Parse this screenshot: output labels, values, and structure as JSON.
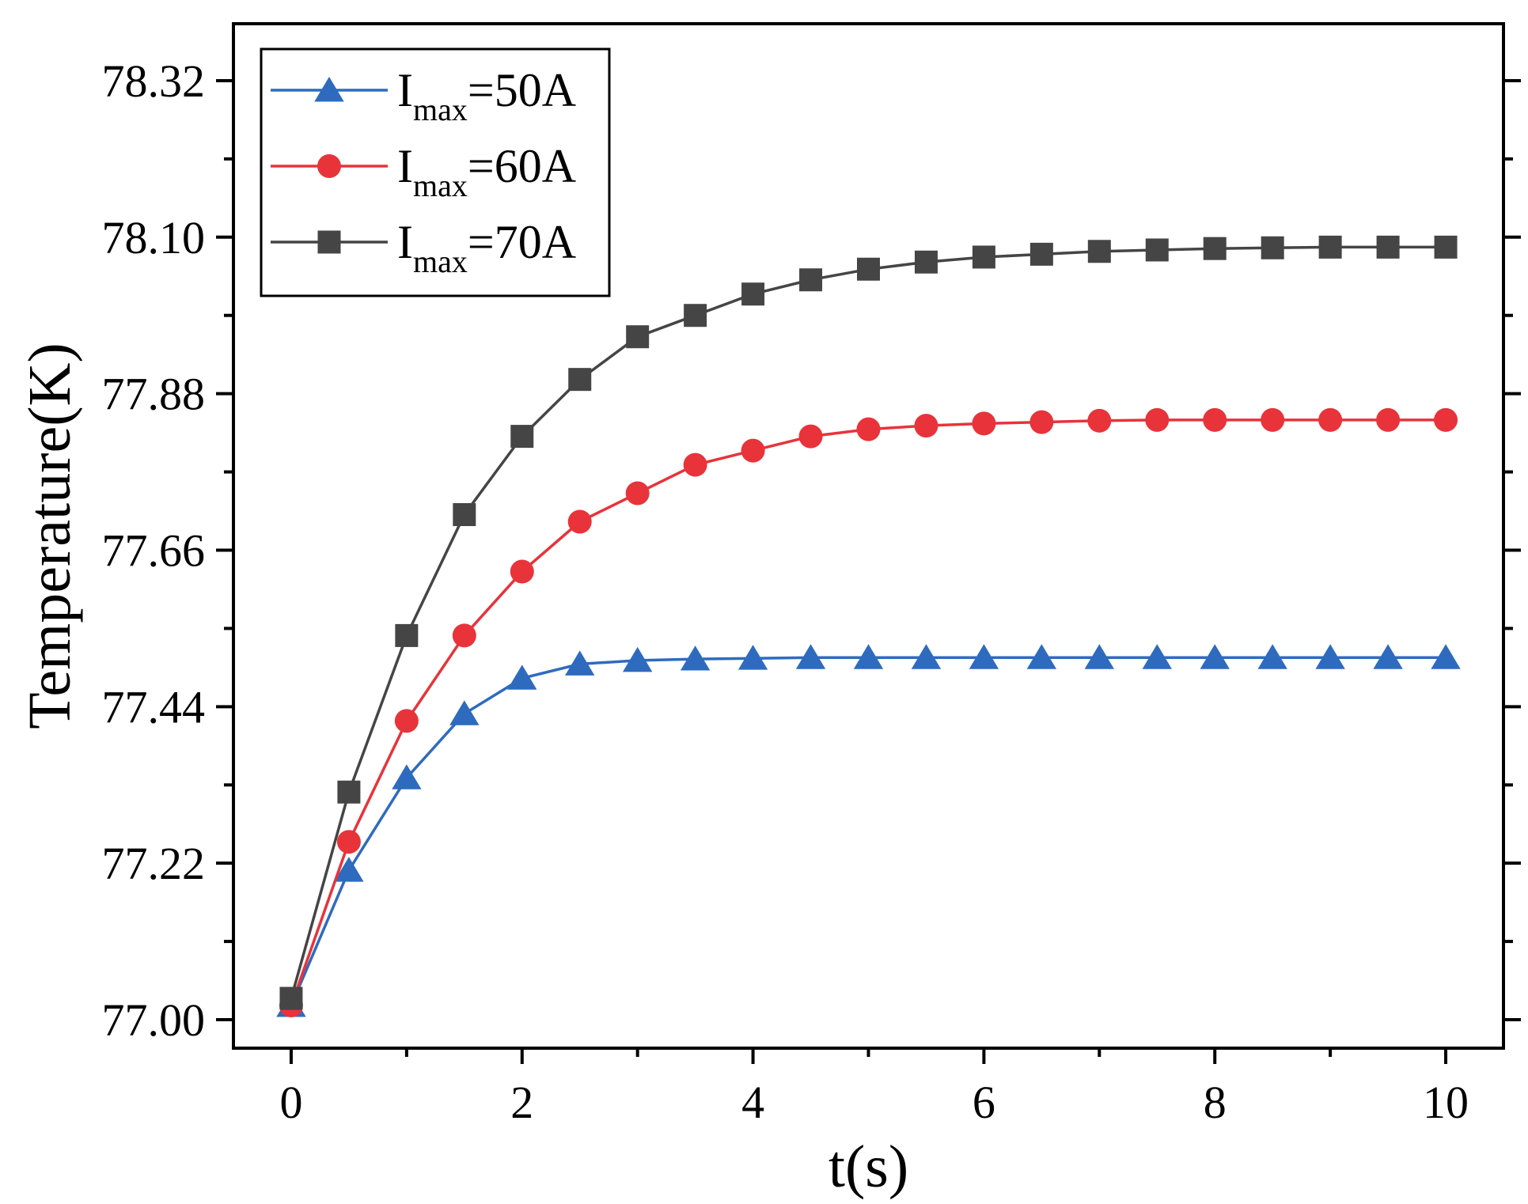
{
  "chart_data": {
    "type": "line",
    "title": "",
    "xlabel": "t(s)",
    "ylabel": "Temperature(K)",
    "xlim": [
      -0.5,
      10.5
    ],
    "ylim": [
      76.96,
      78.4
    ],
    "xticks": [
      0,
      2,
      4,
      6,
      8,
      10
    ],
    "xtick_labels": [
      "0",
      "2",
      "4",
      "6",
      "8",
      "10"
    ],
    "yticks": [
      77.0,
      77.22,
      77.44,
      77.66,
      77.88,
      78.1,
      78.32
    ],
    "ytick_labels": [
      "77.00",
      "77.22",
      "77.44",
      "77.66",
      "77.88",
      "78.10",
      "78.32"
    ],
    "grid": false,
    "legend_position": "top-left",
    "x": [
      0,
      0.5,
      1,
      1.5,
      2,
      2.5,
      3,
      3.5,
      4,
      4.5,
      5,
      5.5,
      6,
      6.5,
      7,
      7.5,
      8,
      8.5,
      9,
      9.5,
      10
    ],
    "series": [
      {
        "name": "I_max=50A",
        "label_main": "I",
        "label_sub": "max",
        "label_rest": "=50A",
        "color": "#2e6bbf",
        "marker": "triangle",
        "values": [
          77.02,
          77.21,
          77.34,
          77.43,
          77.48,
          77.5,
          77.505,
          77.507,
          77.508,
          77.509,
          77.509,
          77.509,
          77.509,
          77.509,
          77.509,
          77.509,
          77.509,
          77.509,
          77.509,
          77.509,
          77.509
        ]
      },
      {
        "name": "I_max=60A",
        "label_main": "I",
        "label_sub": "max",
        "label_rest": "=60A",
        "color": "#e8333a",
        "marker": "circle",
        "values": [
          77.02,
          77.25,
          77.42,
          77.54,
          77.63,
          77.7,
          77.74,
          77.78,
          77.8,
          77.82,
          77.83,
          77.835,
          77.838,
          77.84,
          77.842,
          77.843,
          77.843,
          77.843,
          77.843,
          77.843,
          77.843
        ]
      },
      {
        "name": "I_max=70A",
        "label_main": "I",
        "label_sub": "max",
        "label_rest": "=70A",
        "color": "#454545",
        "marker": "square",
        "values": [
          77.03,
          77.32,
          77.54,
          77.71,
          77.82,
          77.9,
          77.96,
          77.99,
          78.02,
          78.04,
          78.055,
          78.065,
          78.072,
          78.076,
          78.08,
          78.082,
          78.084,
          78.085,
          78.086,
          78.086,
          78.086
        ]
      }
    ]
  }
}
